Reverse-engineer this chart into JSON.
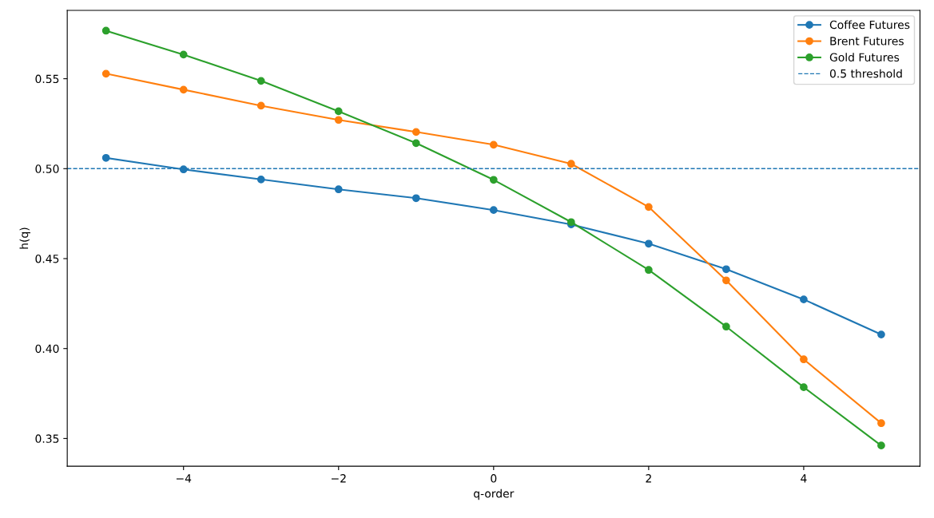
{
  "chart_data": {
    "type": "line",
    "xlabel": "q-order",
    "ylabel": "h(q)",
    "x": [
      -5,
      -4,
      -3,
      -2,
      -1,
      0,
      1,
      2,
      3,
      4,
      5
    ],
    "series": [
      {
        "name": "Coffee Futures",
        "color": "#1f77b4",
        "values": [
          0.506,
          0.4996,
          0.494,
          0.4885,
          0.4836,
          0.477,
          0.469,
          0.4583,
          0.4441,
          0.4273,
          0.4078
        ]
      },
      {
        "name": "Brent Futures",
        "color": "#ff7f0e",
        "values": [
          0.5528,
          0.5439,
          0.535,
          0.5271,
          0.5204,
          0.5133,
          0.5027,
          0.4787,
          0.4379,
          0.394,
          0.3585
        ]
      },
      {
        "name": "Gold Futures",
        "color": "#2ca02c",
        "values": [
          0.5767,
          0.5634,
          0.5488,
          0.5319,
          0.5142,
          0.4938,
          0.4703,
          0.4437,
          0.4122,
          0.3785,
          0.3461
        ]
      }
    ],
    "ref_lines": [
      {
        "axis": "y",
        "value": 0.5,
        "label": "0.5 threshold",
        "color": "#1f77b4",
        "line_style": "dashed"
      }
    ],
    "xlim": [
      -5.5,
      5.5
    ],
    "xticks": [
      {
        "value": -4,
        "label": "−4"
      },
      {
        "value": -2,
        "label": "−2"
      },
      0,
      2,
      4
    ],
    "ylim": [
      0.3346,
      0.588
    ],
    "yticks": [
      {
        "value": 0.35,
        "label": "0.35"
      },
      {
        "value": 0.4,
        "label": "0.40"
      },
      {
        "value": 0.45,
        "label": "0.45"
      },
      {
        "value": 0.5,
        "label": "0.50"
      },
      {
        "value": 0.55,
        "label": "0.55"
      }
    ],
    "marker": "circle",
    "line_style": "solid",
    "grid": false,
    "legend": "top right"
  }
}
